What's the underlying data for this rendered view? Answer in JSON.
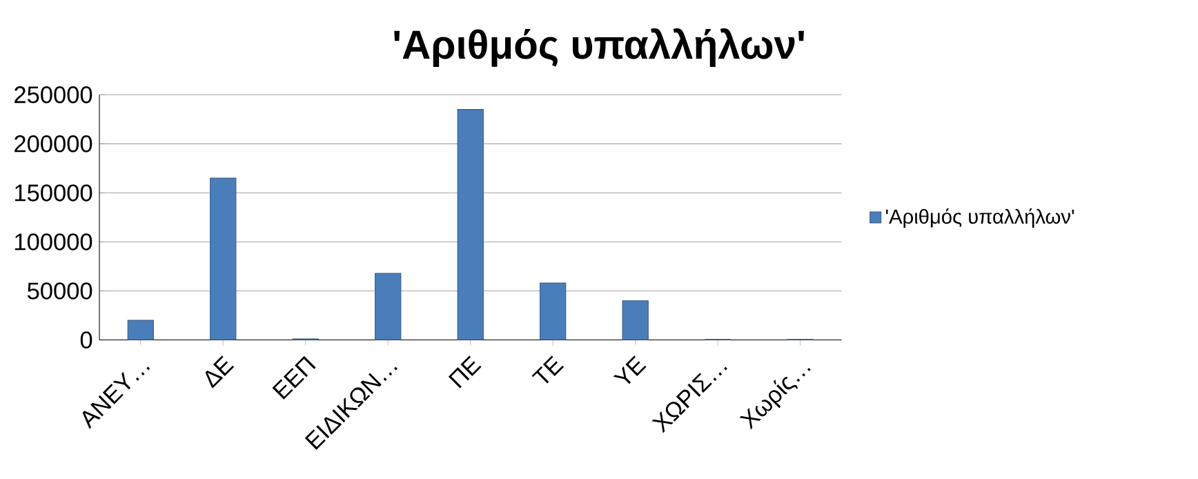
{
  "chart_data": {
    "type": "bar",
    "title": "'Αριθμός υπαλλήλων'",
    "categories": [
      "ΑΝΕΥ…",
      "ΔΕ",
      "ΕΕΠ",
      "ΕΙΔΙΚΩΝ…",
      "ΠΕ",
      "ΤΕ",
      "ΥΕ",
      "ΧΩΡΙΣ…",
      "Χωρίς…"
    ],
    "series": [
      {
        "name": "'Αριθμός υπαλλήλων'",
        "color": "#4a7ebb",
        "values": [
          20000,
          165000,
          1000,
          68000,
          235000,
          58000,
          40000,
          500,
          500
        ]
      }
    ],
    "ylim": [
      0,
      250000
    ],
    "yticks": [
      0,
      50000,
      100000,
      150000,
      200000,
      250000
    ],
    "grid": "y",
    "legend": "right"
  }
}
